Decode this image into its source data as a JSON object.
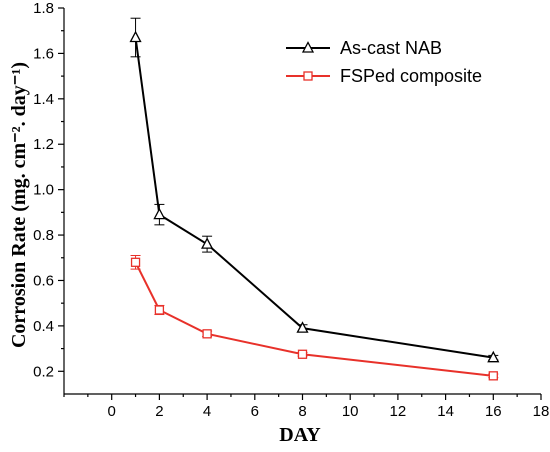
{
  "chart_data": {
    "type": "line",
    "title": "",
    "xlabel": "DAY",
    "ylabel": "Corrosion Rate (mg. cm⁻². day⁻¹)",
    "xlim": [
      -2,
      18
    ],
    "ylim": [
      0.1,
      1.8
    ],
    "xticks": [
      0,
      2,
      4,
      6,
      8,
      10,
      12,
      14,
      16,
      18
    ],
    "yticks": [
      0.2,
      0.4,
      0.6,
      0.8,
      1.0,
      1.2,
      1.4,
      1.6,
      1.8
    ],
    "ytick_labels": [
      "0.2",
      "0.4",
      "0.6",
      "0.8",
      "1.0",
      "1.2",
      "1.4",
      "1.6",
      "1.8"
    ],
    "grid": false,
    "legend_position": "top-right",
    "series": [
      {
        "name": "As-cast NAB",
        "color": "#000000",
        "marker": "triangle",
        "x": [
          1,
          2,
          4,
          8,
          16
        ],
        "y": [
          1.67,
          0.89,
          0.76,
          0.39,
          0.26
        ],
        "error": [
          0.085,
          0.045,
          0.035,
          0.015,
          0.01
        ]
      },
      {
        "name": "FSPed composite",
        "color": "#e8312a",
        "marker": "square",
        "x": [
          1,
          2,
          4,
          8,
          16
        ],
        "y": [
          0.68,
          0.47,
          0.365,
          0.275,
          0.18
        ],
        "error": [
          0.03,
          0.02,
          0.012,
          0.008,
          0.008
        ]
      }
    ]
  }
}
